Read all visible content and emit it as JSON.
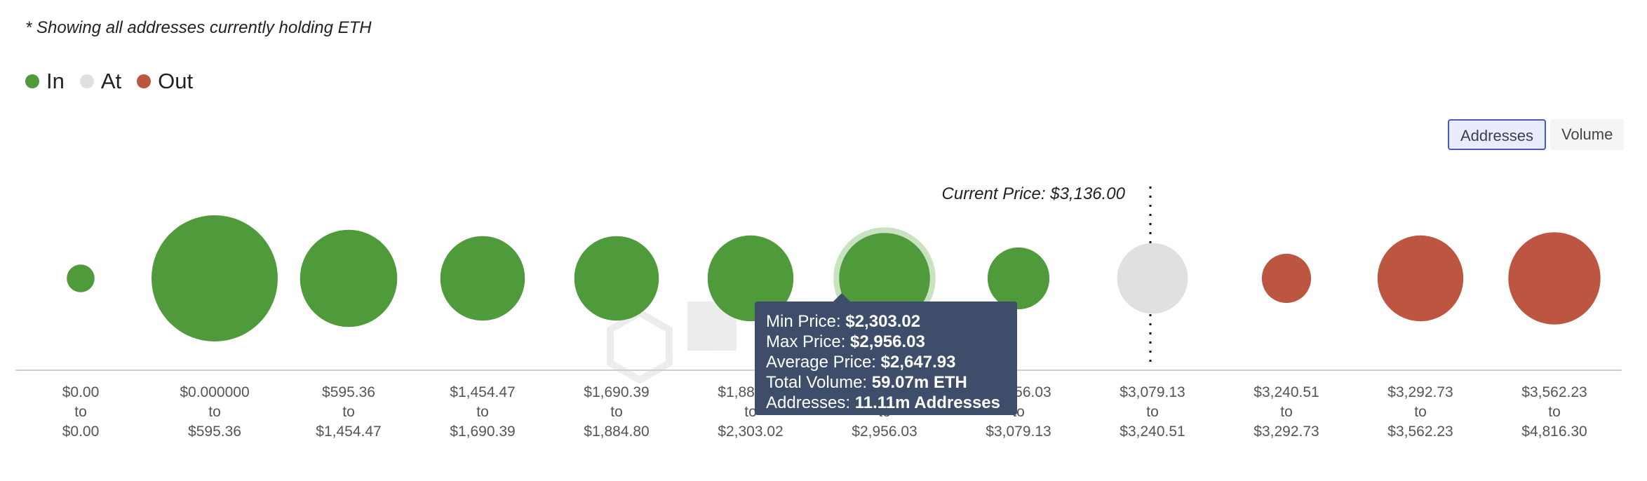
{
  "note": "* Showing all addresses currently holding ETH",
  "legend": [
    {
      "label": "In",
      "color": "#4f9a3a"
    },
    {
      "label": "At",
      "color": "#e0e0e0"
    },
    {
      "label": "Out",
      "color": "#bc5640"
    }
  ],
  "toggle": {
    "addresses_label": "Addresses",
    "volume_label": "Volume",
    "selected": "Addresses"
  },
  "current_price_label": "Current Price: $3,136.00",
  "tooltip": {
    "min_label": "Min Price:",
    "min_value": "$2,303.02",
    "max_label": "Max Price:",
    "max_value": "$2,956.03",
    "avg_label": "Average Price:",
    "avg_value": "$2,647.93",
    "vol_label": "Total Volume:",
    "vol_value": "59.07m ETH",
    "addr_label": "Addresses:",
    "addr_value": "11.11m Addresses"
  },
  "colors": {
    "in": "#4f9a3a",
    "at": "#e0e0e0",
    "out": "#bc5640",
    "axis": "#c9cde6",
    "highlight": "#c9e3c0"
  },
  "chart_data": {
    "type": "scatter",
    "current_price": 3136.0,
    "highlighted_index": 6,
    "buckets": [
      {
        "from": "$0.00",
        "to": "$0.00",
        "status": "in",
        "relative_size": 0.22
      },
      {
        "from": "$0.000000",
        "to": "$595.36",
        "status": "in",
        "relative_size": 1.0
      },
      {
        "from": "$595.36",
        "to": "$1,454.47",
        "status": "in",
        "relative_size": 0.77
      },
      {
        "from": "$1,454.47",
        "to": "$1,690.39",
        "status": "in",
        "relative_size": 0.67
      },
      {
        "from": "$1,690.39",
        "to": "$1,884.80",
        "status": "in",
        "relative_size": 0.67
      },
      {
        "from": "$1,884.80",
        "to": "$2,303.02",
        "status": "in",
        "relative_size": 0.68
      },
      {
        "from": "$2,303.02",
        "to": "$2,956.03",
        "status": "in",
        "relative_size": 0.72
      },
      {
        "from": "$2,956.03",
        "to": "$3,079.13",
        "status": "in",
        "relative_size": 0.49
      },
      {
        "from": "$3,079.13",
        "to": "$3,240.51",
        "status": "at",
        "relative_size": 0.56
      },
      {
        "from": "$3,240.51",
        "to": "$3,292.73",
        "status": "out",
        "relative_size": 0.39
      },
      {
        "from": "$3,292.73",
        "to": "$3,562.23",
        "status": "out",
        "relative_size": 0.68
      },
      {
        "from": "$3,562.23",
        "to": "$4,816.30",
        "status": "out",
        "relative_size": 0.73
      }
    ],
    "to_word": "to"
  }
}
